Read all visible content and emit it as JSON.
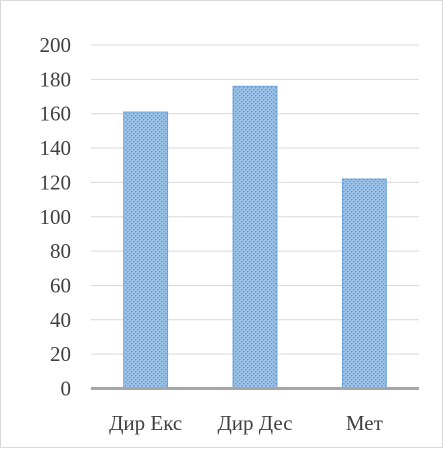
{
  "chart_data": {
    "type": "bar",
    "categories": [
      "Дир Екс",
      "Дир Дес",
      "Мет"
    ],
    "values": [
      161,
      176,
      122
    ],
    "title": "",
    "xlabel": "",
    "ylabel": "",
    "ylim": [
      0,
      200
    ],
    "yticks": [
      0,
      20,
      40,
      60,
      80,
      100,
      120,
      140,
      160,
      180,
      200
    ],
    "grid": true,
    "legend": "none"
  },
  "colors": {
    "bar_fill": "#9dc3e6",
    "bar_pattern": "#5b9bd5",
    "gridline": "#d9d9d9",
    "axis": "#a6a6a6",
    "text": "#404040"
  }
}
